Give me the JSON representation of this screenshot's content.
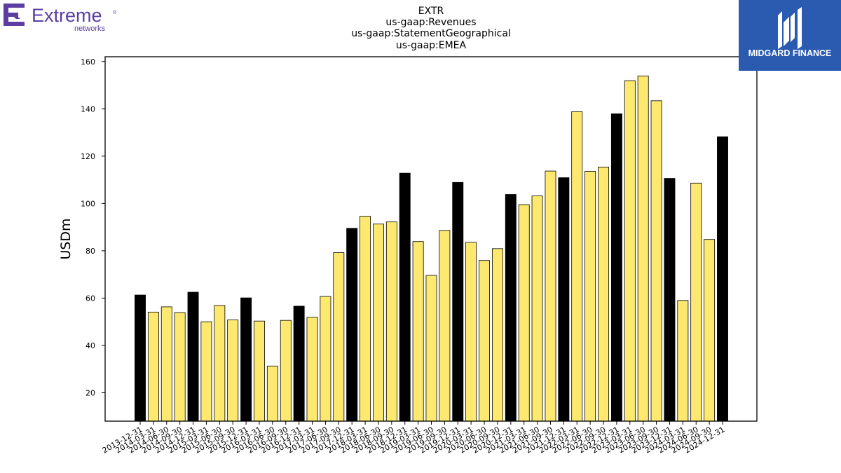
{
  "logos": {
    "left": {
      "word": "Extreme",
      "sub": "networks",
      "trademark": "®",
      "color": "#5b3e9f",
      "icon": "extreme-e-icon"
    },
    "right": {
      "text": "MIDGARD FINANCE",
      "bg": "#2b5bb0",
      "icon": "midgard-m-icon"
    }
  },
  "chart_data": {
    "type": "bar",
    "title_lines": [
      "EXTR",
      "us-gaap:Revenues",
      "us-gaap:StatementGeographical",
      "us-gaap:EMEA"
    ],
    "ylabel": "USDm",
    "xlabel": "",
    "ylim": [
      8,
      162
    ],
    "yticks": [
      20,
      40,
      60,
      80,
      100,
      120,
      140,
      160
    ],
    "grid": false,
    "colors": {
      "q4": "#000000",
      "other": "#fde96f",
      "edge": "#000000"
    },
    "categories": [
      "2013-12-31",
      "2014-03-31",
      "2014-06-30",
      "2014-09-30",
      "2014-12-31",
      "2015-03-31",
      "2015-06-30",
      "2015-09-30",
      "2015-12-31",
      "2016-03-31",
      "2016-06-30",
      "2016-09-30",
      "2016-12-31",
      "2017-03-31",
      "2017-06-30",
      "2017-09-30",
      "2017-12-31",
      "2018-03-31",
      "2018-06-30",
      "2018-09-30",
      "2018-12-31",
      "2019-03-31",
      "2019-06-30",
      "2019-09-30",
      "2019-12-31",
      "2020-03-31",
      "2020-06-30",
      "2020-09-30",
      "2020-12-31",
      "2021-03-31",
      "2021-06-30",
      "2021-09-30",
      "2021-12-31",
      "2022-03-31",
      "2022-06-30",
      "2022-09-30",
      "2022-12-31",
      "2023-03-31",
      "2023-06-30",
      "2023-09-30",
      "2023-12-31",
      "2024-03-31",
      "2024-06-30",
      "2024-09-30",
      "2024-12-31"
    ],
    "values": [
      61.3,
      54.1,
      56.3,
      53.9,
      62.5,
      50.0,
      56.9,
      50.8,
      60.1,
      50.3,
      31.3,
      50.6,
      56.6,
      51.9,
      60.7,
      79.2,
      89.5,
      94.6,
      91.3,
      92.2,
      112.8,
      83.9,
      69.6,
      88.6,
      108.9,
      83.6,
      75.9,
      80.9,
      103.8,
      99.5,
      103.2,
      113.7,
      110.9,
      138.8,
      113.6,
      115.4,
      137.9,
      151.9,
      153.9,
      143.4,
      110.6,
      59.0,
      108.6,
      84.8,
      128.2
    ],
    "highlight": [
      true,
      false,
      false,
      false,
      true,
      false,
      false,
      false,
      true,
      false,
      false,
      false,
      true,
      false,
      false,
      false,
      true,
      false,
      false,
      false,
      true,
      false,
      false,
      false,
      true,
      false,
      false,
      false,
      true,
      false,
      false,
      false,
      true,
      false,
      false,
      false,
      true,
      false,
      false,
      false,
      true,
      false,
      false,
      false,
      true
    ]
  }
}
